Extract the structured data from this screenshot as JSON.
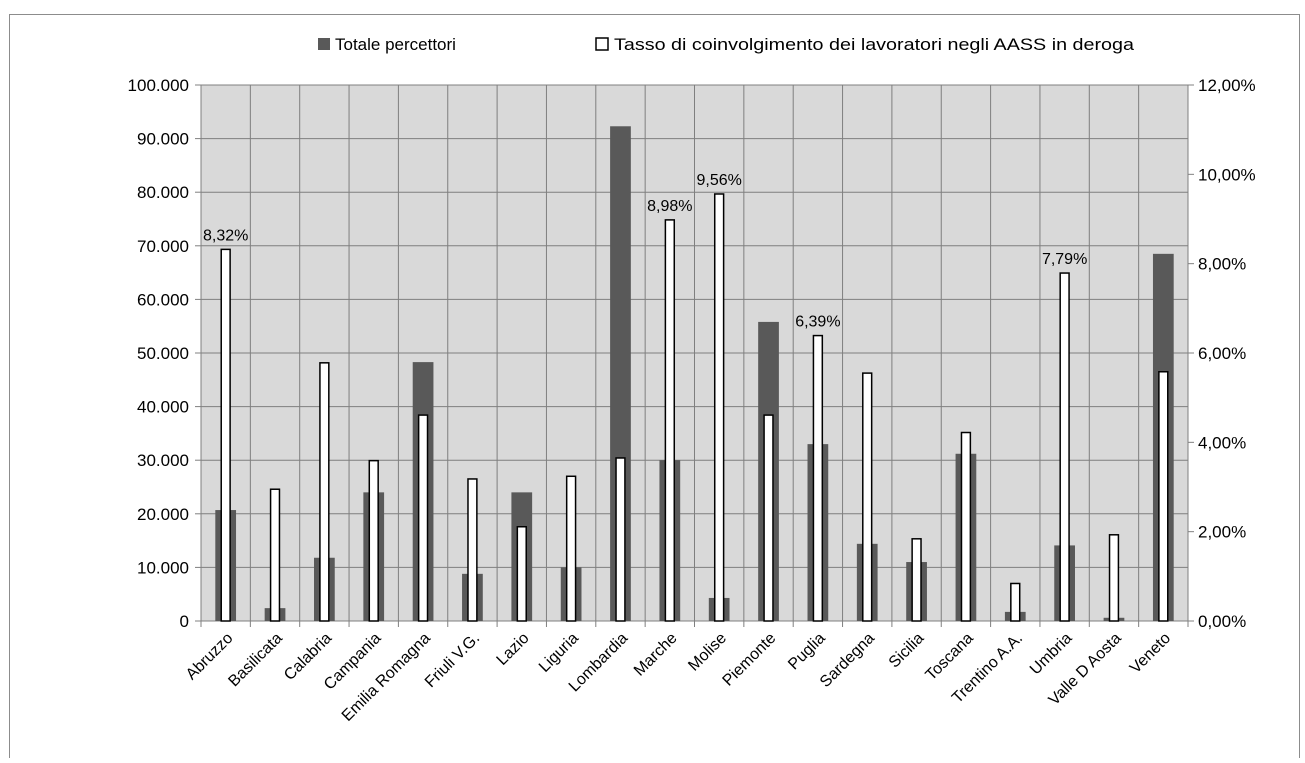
{
  "chart_data": {
    "type": "bar",
    "categories": [
      "Abruzzo",
      "Basilicata",
      "Calabria",
      "Campania",
      "Emilia Romagna",
      "Friuli V.G.",
      "Lazio",
      "Liguria",
      "Lombardia",
      "Marche",
      "Molise",
      "Piemonte",
      "Puglia",
      "Sardegna",
      "Sicilia",
      "Toscana",
      "Trentino A.A.",
      "Umbria",
      "Valle D Aosta",
      "Veneto"
    ],
    "series": [
      {
        "name": "Totale percettori",
        "axis": "left",
        "color": "#595959",
        "values": [
          20700,
          2400,
          11800,
          24000,
          48300,
          8800,
          24000,
          10000,
          92300,
          30000,
          4300,
          55800,
          33000,
          14400,
          11000,
          31200,
          1700,
          14100,
          600,
          68500
        ]
      },
      {
        "name": "Tasso di coinvolgimento dei lavoratori negli AASS in deroga",
        "axis": "right",
        "color": "#ffffff",
        "values": [
          8.32,
          2.95,
          5.78,
          3.59,
          4.61,
          3.18,
          2.11,
          3.24,
          3.65,
          8.98,
          9.56,
          4.61,
          6.39,
          5.55,
          1.84,
          4.22,
          0.84,
          7.79,
          1.93,
          5.58
        ]
      }
    ],
    "data_labels": [
      {
        "category": "Abruzzo",
        "text": "8,32%"
      },
      {
        "category": "Marche",
        "text": "8,98%"
      },
      {
        "category": "Molise",
        "text": "9,56%"
      },
      {
        "category": "Puglia",
        "text": "6,39%"
      },
      {
        "category": "Umbria",
        "text": "7,79%"
      }
    ],
    "y_left": {
      "min": 0,
      "max": 100000,
      "step": 10000,
      "tick_labels": [
        "0",
        "10.000",
        "20.000",
        "30.000",
        "40.000",
        "50.000",
        "60.000",
        "70.000",
        "80.000",
        "90.000",
        "100.000"
      ]
    },
    "y_right": {
      "min": 0,
      "max": 12,
      "step": 2,
      "tick_labels": [
        "0,00%",
        "2,00%",
        "4,00%",
        "6,00%",
        "8,00%",
        "10,00%",
        "12,00%"
      ]
    },
    "legend_position": "top",
    "grid": true,
    "plot_background": "#d9d9d9",
    "grid_color": "#7f7f7f",
    "title": "",
    "xlabel": "",
    "ylabel": ""
  }
}
